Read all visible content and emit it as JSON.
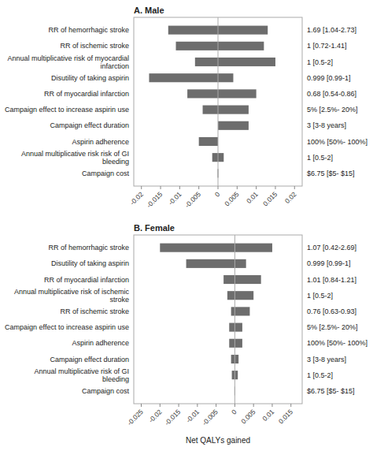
{
  "chart_data": [
    {
      "type": "bar",
      "orientation": "horizontal",
      "title": "A. Male",
      "categories": [
        "RR of hemorrhagic stroke",
        "RR of ischemic stroke",
        "Annual multiplicative risk of myocardial\ninfarction",
        "Disutility of taking aspirin",
        "RR of myocardial infarction",
        "Campaign effect to increase aspirin use",
        "Campaign effect duration",
        "Aspirin adherence",
        "Annual multiplicative risk risk of GI\nbleeding",
        "Campaign cost"
      ],
      "low": [
        -0.013,
        -0.011,
        -0.006,
        -0.018,
        -0.008,
        -0.004,
        0.0,
        -0.005,
        -0.0015,
        -0.0001
      ],
      "high": [
        0.013,
        0.012,
        0.015,
        0.004,
        0.01,
        0.008,
        0.008,
        0.0,
        0.0015,
        0.0001
      ],
      "annotations": [
        "1.69 [1.04-2.73]",
        "1 [0.72-1.41]",
        "1 [0.5-2]",
        "0.999 [0.99-1]",
        "0.68 [0.54-0.86]",
        "5% [2.5%- 20%]",
        "3 [3-8 years]",
        "100% [50%- 100%]",
        "1 [0.5-2]",
        "$6.75 [$5- $15]"
      ],
      "vline": 0,
      "color": "#6d6d6d",
      "xlim": [
        -0.022,
        0.022
      ],
      "xticks": [
        -0.02,
        -0.015,
        -0.01,
        -0.005,
        0,
        0.005,
        0.01,
        0.015,
        0.02
      ]
    },
    {
      "type": "bar",
      "orientation": "horizontal",
      "title": "B. Female",
      "categories": [
        "RR of hemorrhagic stroke",
        "Disutility of taking aspirin",
        "RR of myocardial infarction",
        "Annual multiplicative risk of ischemic\nstroke",
        "RR of ischemic stroke",
        "Campaign effect to increase aspirin use",
        "Aspirin adherence",
        "Campaign effect duration",
        "Annual multiplicative risk of GI\nbleeding",
        "Campaign cost"
      ],
      "low": [
        -0.02,
        -0.013,
        -0.003,
        -0.002,
        -0.001,
        -0.0015,
        -0.0015,
        -0.001,
        -0.0008,
        -0.0001
      ],
      "high": [
        0.01,
        0.003,
        0.007,
        0.005,
        0.004,
        0.002,
        0.002,
        0.001,
        0.0008,
        0.0001
      ],
      "annotations": [
        "1.07 [0.42-2.69]",
        "0.999 [0.99-1]",
        "1.01 [0.84-1.21]",
        "1 [0.5-2]",
        "0.76 [0.63-0.93]",
        "5% [2.5%- 20%]",
        "100% [50%- 100%]",
        "3 [3-8 years]",
        "1 [0.5-2]",
        "$6.75 [$5- $15]"
      ],
      "vline": 0,
      "color": "#6d6d6d",
      "xlim": [
        -0.027,
        0.018
      ],
      "xticks": [
        -0.025,
        -0.02,
        -0.015,
        -0.01,
        -0.005,
        0,
        0.005,
        0.01,
        0.015
      ],
      "xlabel": "Net QALYs gained"
    }
  ]
}
